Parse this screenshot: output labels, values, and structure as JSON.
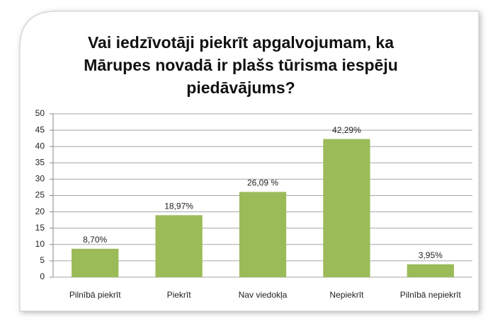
{
  "chart_data": {
    "type": "bar",
    "title": "Vai iedzīvotāji piekrīt apgalvojumam, ka Mārupes novadā ir plašs tūrisma iespēju piedāvājums?",
    "categories": [
      "Pilnībā piekrīt",
      "Piekrīt",
      "Nav viedokļa",
      "Nepiekrīt",
      "Pilnībā nepiekrīt"
    ],
    "values": [
      8.7,
      18.97,
      26.09,
      42.29,
      3.95
    ],
    "value_labels": [
      "8,70%",
      "18,97%",
      "26,09 %",
      "42,29%",
      "3,95%"
    ],
    "color": "#9bbb59",
    "ylim": [
      0,
      50
    ],
    "yticks": [
      0,
      5,
      10,
      15,
      20,
      25,
      30,
      35,
      40,
      45,
      50
    ],
    "grid": true
  }
}
